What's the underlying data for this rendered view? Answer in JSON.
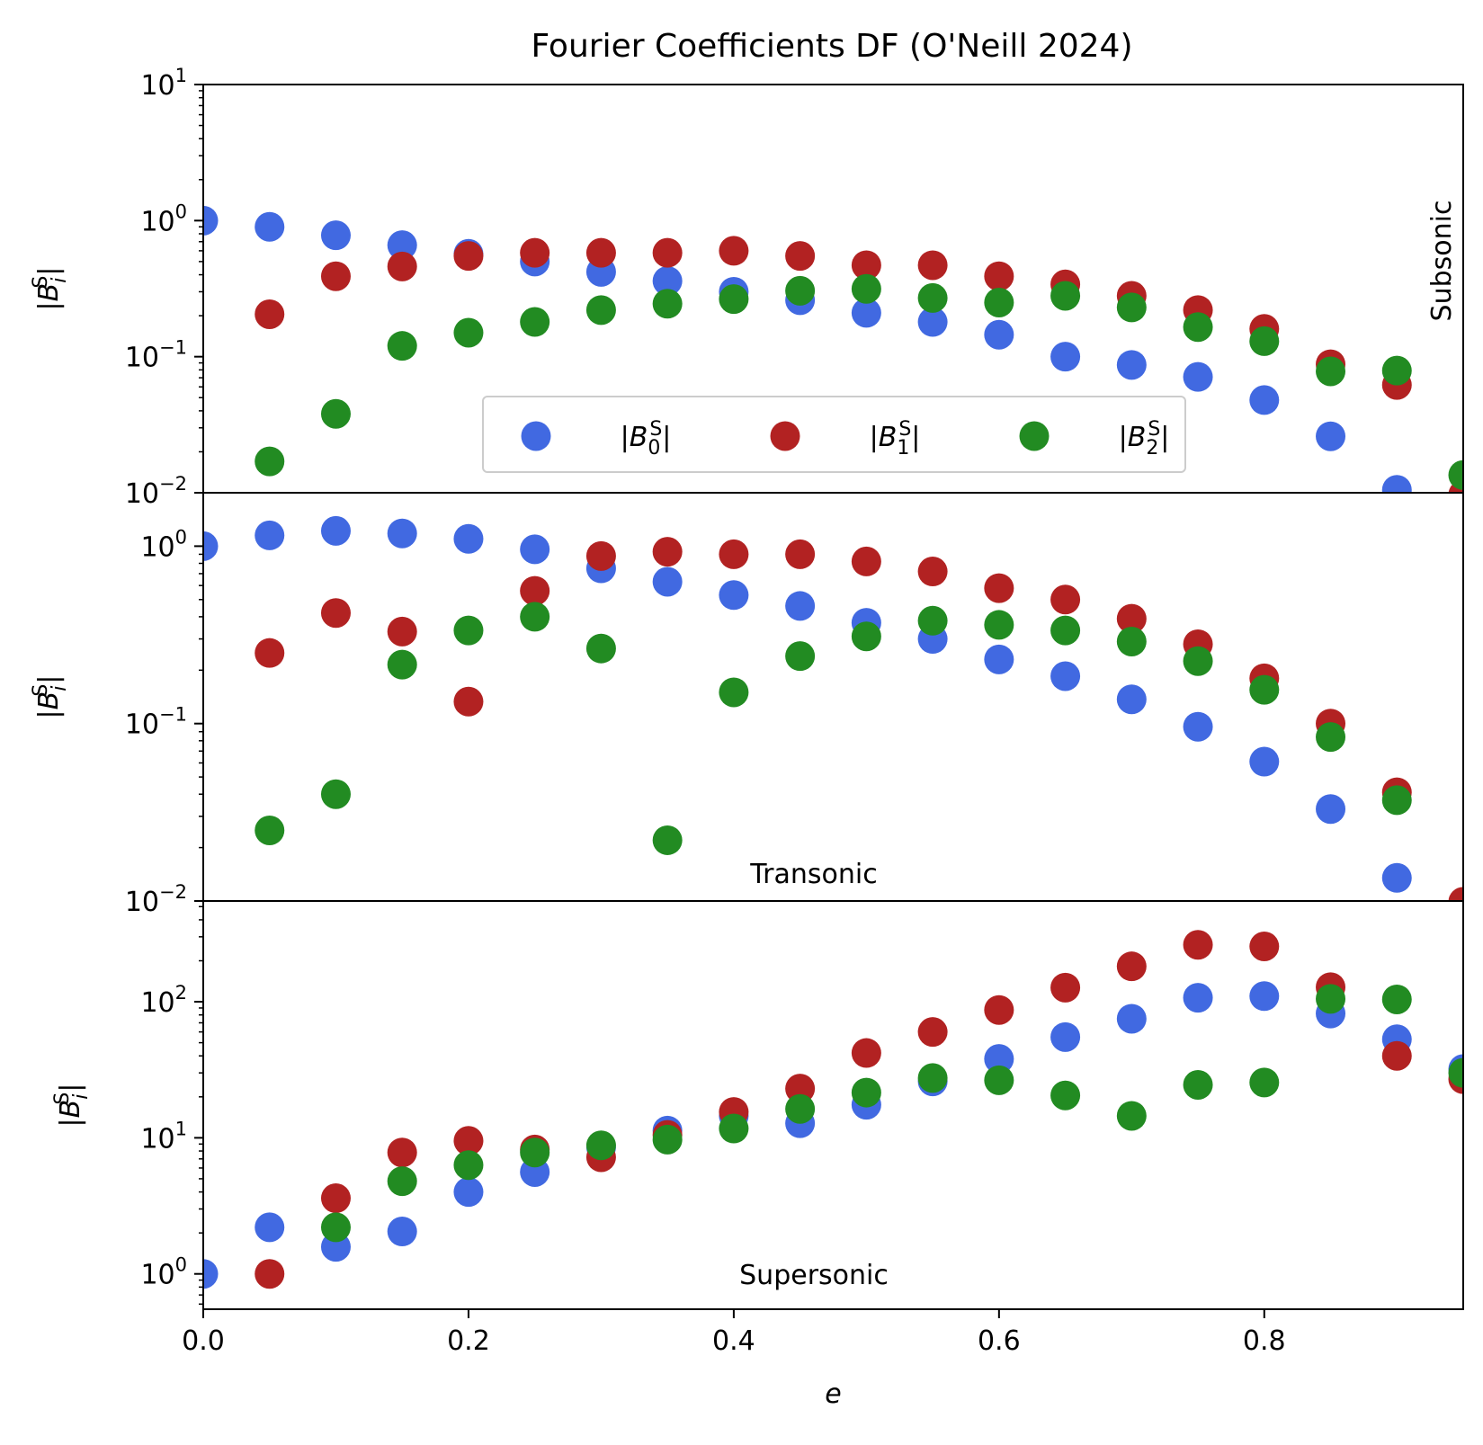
{
  "chart_data": {
    "type": "scatter",
    "title": "Fourier Coefficients DF (O'Neill 2024)",
    "xlabel": "e",
    "xlim": [
      0.0,
      0.95
    ],
    "x_ticks": [
      "0.0",
      "0.2",
      "0.4",
      "0.6",
      "0.8"
    ],
    "x": [
      0.0,
      0.05,
      0.1,
      0.15,
      0.2,
      0.25,
      0.3,
      0.35,
      0.4,
      0.45,
      0.5,
      0.55,
      0.6,
      0.65,
      0.7,
      0.75,
      0.8,
      0.85,
      0.9,
      0.95
    ],
    "legend": {
      "placement": "lower-center (top panel)",
      "entries": [
        "|B_0^S|",
        "|B_1^S|",
        "|B_2^S|"
      ]
    },
    "colors": {
      "B0": "#4169e1",
      "B1": "#b22222",
      "B2": "#228b22"
    },
    "panels": [
      {
        "label": "Subsonic",
        "ylabel": "|B_i^S|",
        "yscale": "log",
        "ylim": [
          0.01,
          10
        ],
        "y_ticks": [
          "10^1",
          "10^0",
          "10^-1",
          "10^-2"
        ],
        "series": [
          {
            "name": "|B_0^S|",
            "values": [
              1.0,
              0.9,
              0.78,
              0.66,
              0.57,
              0.5,
              0.42,
              0.36,
              0.3,
              0.26,
              0.21,
              0.18,
              0.145,
              0.1,
              0.087,
              0.071,
              0.048,
              0.026,
              0.0105,
              null
            ]
          },
          {
            "name": "|B_1^S|",
            "values": [
              null,
              0.205,
              0.39,
              0.46,
              0.55,
              0.58,
              0.58,
              0.58,
              0.6,
              0.55,
              0.47,
              0.47,
              0.39,
              0.34,
              0.28,
              0.22,
              0.16,
              0.088,
              0.062,
              0.0097
            ]
          },
          {
            "name": "|B_2^S|",
            "values": [
              null,
              0.017,
              0.038,
              0.12,
              0.15,
              0.18,
              0.22,
              0.245,
              0.265,
              0.305,
              0.315,
              0.27,
              0.25,
              0.28,
              0.23,
              0.165,
              0.13,
              0.078,
              0.079,
              0.0135
            ]
          }
        ]
      },
      {
        "label": "Transonic",
        "ylabel": "|B_i^S|",
        "yscale": "log",
        "ylim": [
          0.01,
          2
        ],
        "y_ticks": [
          "10^0",
          "10^-1",
          "10^-2"
        ],
        "series": [
          {
            "name": "|B_0^S|",
            "values": [
              1.0,
              1.15,
              1.22,
              1.18,
              1.1,
              0.96,
              0.75,
              0.63,
              0.53,
              0.46,
              0.37,
              0.3,
              0.23,
              0.185,
              0.137,
              0.096,
              0.061,
              0.033,
              0.0135,
              null
            ]
          },
          {
            "name": "|B_1^S|",
            "values": [
              null,
              0.25,
              0.42,
              0.33,
              0.133,
              0.56,
              0.88,
              0.93,
              0.9,
              0.9,
              0.82,
              0.72,
              0.58,
              0.5,
              0.39,
              0.28,
              0.18,
              0.1,
              0.041,
              0.0099
            ]
          },
          {
            "name": "|B_2^S|",
            "values": [
              null,
              0.025,
              0.04,
              0.215,
              0.335,
              0.4,
              0.265,
              0.022,
              0.15,
              0.24,
              0.31,
              0.38,
              0.36,
              0.335,
              0.29,
              0.225,
              0.155,
              0.084,
              0.037,
              null
            ]
          }
        ]
      },
      {
        "label": "Supersonic",
        "ylabel": "|B_i^S|",
        "yscale": "log",
        "ylim": [
          0.55,
          550
        ],
        "y_ticks": [
          "10^2",
          "10^1",
          "10^0"
        ],
        "series": [
          {
            "name": "|B_0^S|",
            "values": [
              1.0,
              2.2,
              1.58,
              2.05,
              4.0,
              5.6,
              8.5,
              11.3,
              14.5,
              12.8,
              17.5,
              26.0,
              38.0,
              55.0,
              75.0,
              107.0,
              110.0,
              82.0,
              53.0,
              32.0
            ]
          },
          {
            "name": "|B_1^S|",
            "values": [
              null,
              1.0,
              3.6,
              7.8,
              9.5,
              8.2,
              7.2,
              10.5,
              15.5,
              23.0,
              42.0,
              60.0,
              87.0,
              127.0,
              182.0,
              262.0,
              255.0,
              128.0,
              40.0,
              27.0
            ]
          },
          {
            "name": "|B_2^S|",
            "values": [
              null,
              null,
              2.2,
              4.8,
              6.3,
              7.8,
              8.8,
              9.7,
              11.7,
              16.3,
              21.5,
              27.5,
              26.5,
              20.5,
              14.5,
              24.5,
              25.5,
              105.0,
              104.0,
              30.0
            ]
          }
        ]
      }
    ]
  }
}
